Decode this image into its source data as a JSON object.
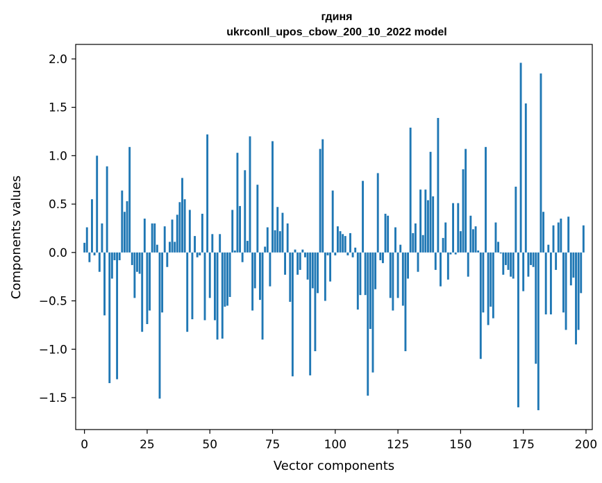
{
  "chart_data": {
    "type": "bar",
    "title": "гдиня",
    "subtitle": "ukrconll_upos_cbow_200_10_2022 model",
    "xlabel": "Vector components",
    "ylabel": "Components values",
    "xlim": [
      -3.5,
      202.5
    ],
    "ylim": [
      -1.83,
      2.15
    ],
    "xticks": [
      0,
      25,
      50,
      75,
      100,
      125,
      150,
      175,
      200
    ],
    "xtick_labels": [
      "0",
      "25",
      "50",
      "75",
      "100",
      "125",
      "150",
      "175",
      "200"
    ],
    "yticks": [
      -1.5,
      -1.0,
      -0.5,
      0.0,
      0.5,
      1.0,
      1.5,
      2.0
    ],
    "ytick_labels": [
      "−1.5",
      "−1.0",
      "−0.5",
      "0.0",
      "0.5",
      "1.0",
      "1.5",
      "2.0"
    ],
    "grid": false,
    "bar_color": "#1f77b4",
    "x": [
      0,
      1,
      2,
      3,
      4,
      5,
      6,
      7,
      8,
      9,
      10,
      11,
      12,
      13,
      14,
      15,
      16,
      17,
      18,
      19,
      20,
      21,
      22,
      23,
      24,
      25,
      26,
      27,
      28,
      29,
      30,
      31,
      32,
      33,
      34,
      35,
      36,
      37,
      38,
      39,
      40,
      41,
      42,
      43,
      44,
      45,
      46,
      47,
      48,
      49,
      50,
      51,
      52,
      53,
      54,
      55,
      56,
      57,
      58,
      59,
      60,
      61,
      62,
      63,
      64,
      65,
      66,
      67,
      68,
      69,
      70,
      71,
      72,
      73,
      74,
      75,
      76,
      77,
      78,
      79,
      80,
      81,
      82,
      83,
      84,
      85,
      86,
      87,
      88,
      89,
      90,
      91,
      92,
      93,
      94,
      95,
      96,
      97,
      98,
      99,
      100,
      101,
      102,
      103,
      104,
      105,
      106,
      107,
      108,
      109,
      110,
      111,
      112,
      113,
      114,
      115,
      116,
      117,
      118,
      119,
      120,
      121,
      122,
      123,
      124,
      125,
      126,
      127,
      128,
      129,
      130,
      131,
      132,
      133,
      134,
      135,
      136,
      137,
      138,
      139,
      140,
      141,
      142,
      143,
      144,
      145,
      146,
      147,
      148,
      149,
      150,
      151,
      152,
      153,
      154,
      155,
      156,
      157,
      158,
      159,
      160,
      161,
      162,
      163,
      164,
      165,
      166,
      167,
      168,
      169,
      170,
      171,
      172,
      173,
      174,
      175,
      176,
      177,
      178,
      179,
      180,
      181,
      182,
      183,
      184,
      185,
      186,
      187,
      188,
      189,
      190,
      191,
      192,
      193,
      194,
      195,
      196,
      197,
      198,
      199
    ],
    "values": [
      0.1,
      0.26,
      -0.1,
      0.55,
      -0.03,
      1.0,
      -0.2,
      0.3,
      -0.65,
      0.89,
      -1.35,
      -0.27,
      -0.08,
      -1.31,
      -0.08,
      0.64,
      0.42,
      0.53,
      1.09,
      -0.13,
      -0.47,
      -0.2,
      -0.22,
      -0.82,
      0.35,
      -0.74,
      -0.6,
      0.3,
      0.3,
      0.08,
      -1.51,
      -0.62,
      0.27,
      -0.15,
      0.11,
      0.34,
      0.11,
      0.39,
      0.52,
      0.77,
      0.55,
      -0.82,
      0.44,
      -0.69,
      0.17,
      -0.05,
      -0.03,
      0.4,
      -0.7,
      1.22,
      -0.47,
      0.19,
      -0.7,
      -0.9,
      0.19,
      -0.89,
      -0.56,
      -0.55,
      -0.46,
      0.44,
      0.02,
      1.03,
      0.48,
      -0.1,
      0.85,
      0.12,
      1.2,
      -0.6,
      -0.37,
      0.7,
      -0.49,
      -0.9,
      0.06,
      0.26,
      -0.35,
      1.15,
      0.23,
      0.47,
      0.22,
      0.41,
      -0.23,
      0.3,
      -0.51,
      -1.28,
      0.03,
      -0.23,
      -0.18,
      0.03,
      -0.05,
      -0.28,
      -1.27,
      -0.37,
      -1.02,
      -0.42,
      1.07,
      1.17,
      -0.5,
      -0.03,
      -0.3,
      0.64,
      -0.03,
      0.27,
      0.22,
      0.19,
      0.17,
      -0.03,
      0.2,
      -0.05,
      0.05,
      -0.59,
      -0.44,
      0.74,
      -0.44,
      -1.48,
      -0.79,
      -1.24,
      -0.38,
      0.82,
      -0.08,
      -0.11,
      0.4,
      0.38,
      -0.47,
      -0.6,
      0.26,
      -0.47,
      0.08,
      -0.55,
      -1.02,
      -0.27,
      1.29,
      0.2,
      0.3,
      -0.2,
      0.65,
      0.18,
      0.65,
      0.54,
      1.04,
      0.58,
      -0.18,
      1.39,
      -0.35,
      0.15,
      0.31,
      -0.28,
      -0.02,
      0.51,
      -0.02,
      0.51,
      0.22,
      0.86,
      1.07,
      -0.25,
      0.38,
      0.24,
      0.27,
      0.02,
      -1.1,
      -0.62,
      1.09,
      -0.75,
      -0.56,
      -0.68,
      0.31,
      0.11,
      -0.01,
      -0.23,
      -0.13,
      -0.18,
      -0.25,
      -0.27,
      0.68,
      -1.6,
      1.96,
      -0.4,
      1.54,
      -0.25,
      -0.13,
      -0.15,
      -1.15,
      -1.63,
      1.85,
      0.42,
      -0.64,
      0.08,
      -0.64,
      0.28,
      -0.18,
      0.31,
      0.35,
      -0.62,
      -0.8,
      0.37,
      -0.34,
      -0.26,
      -0.95,
      -0.8,
      -0.42,
      0.28
    ]
  }
}
